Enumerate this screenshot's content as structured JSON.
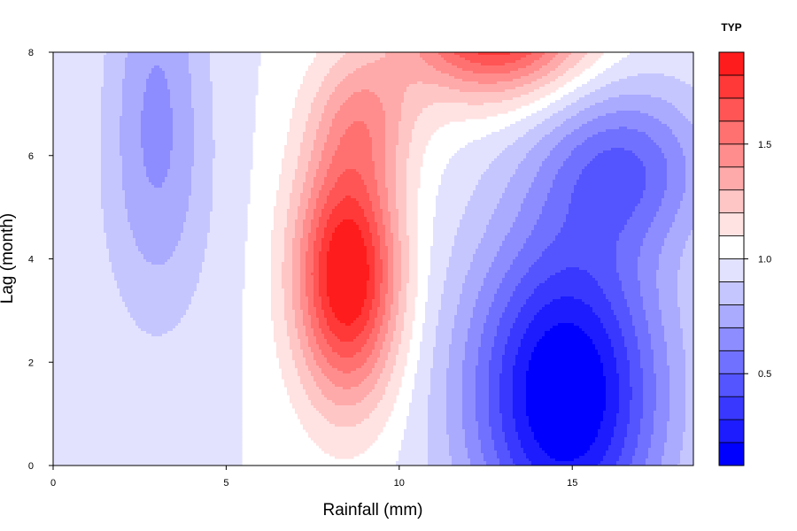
{
  "chart_data": {
    "type": "heatmap",
    "subtype": "filled-contour",
    "xlabel": "Rainfall (mm)",
    "ylabel": "Lag (month)",
    "xlim": [
      0,
      18.5
    ],
    "ylim": [
      0,
      8
    ],
    "x_ticks": [
      "0",
      "5",
      "10",
      "15"
    ],
    "y_ticks": [
      "0",
      "2",
      "4",
      "6",
      "8"
    ],
    "legend": {
      "title": "TYP",
      "placement": "right",
      "range": [
        0.1,
        1.9
      ],
      "ticks": [
        "0.5",
        "1.0",
        "1.5"
      ],
      "levels": [
        0.1,
        0.2,
        0.3,
        0.4,
        0.5,
        0.6,
        0.7,
        0.8,
        0.9,
        1.0,
        1.1,
        1.2,
        1.3,
        1.4,
        1.5,
        1.6,
        1.7,
        1.8,
        1.9
      ],
      "colors_low_to_high": [
        "#0000ff",
        "#1c1cff",
        "#3838ff",
        "#5555ff",
        "#7171ff",
        "#8d8dff",
        "#aaaaff",
        "#c6c6ff",
        "#e2e2ff",
        "#ffffff",
        "#ffe2e2",
        "#ffc6c6",
        "#ffaaaa",
        "#ff8d8d",
        "#ff7171",
        "#ff5555",
        "#ff3838",
        "#ff1c1c"
      ]
    },
    "features": [
      {
        "kind": "peak",
        "x": 8.5,
        "y": 3.8,
        "value": 1.9
      },
      {
        "kind": "peak",
        "x": 12.8,
        "y": 8.0,
        "value": 1.8
      },
      {
        "kind": "trough",
        "x": 14.8,
        "y": 0.8,
        "value": 0.1
      },
      {
        "kind": "trough",
        "x": 3.3,
        "y": 7.6,
        "value": 0.75
      },
      {
        "kind": "trough",
        "x": 16.0,
        "y": 5.5,
        "value": 0.35
      }
    ]
  }
}
